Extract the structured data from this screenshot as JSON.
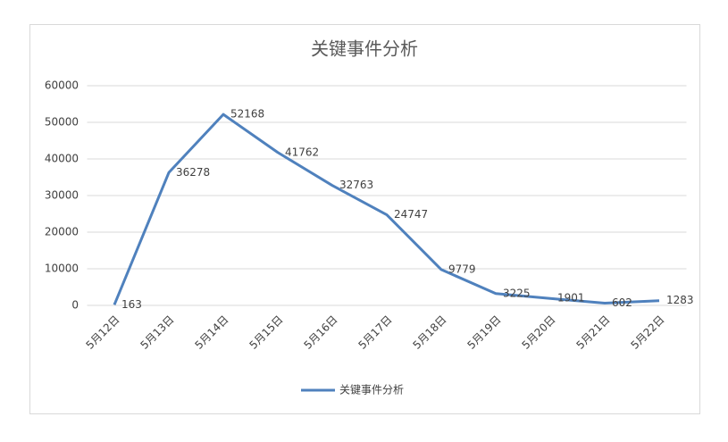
{
  "chart_data": {
    "type": "line",
    "title": "关键事件分析",
    "categories": [
      "5月12日",
      "5月13日",
      "5月14日",
      "5月15日",
      "5月16日",
      "5月17日",
      "5月18日",
      "5月19日",
      "5月20日",
      "5月21日",
      "5月22日"
    ],
    "series": [
      {
        "name": "关键事件分析",
        "color": "#4f81bd",
        "values": [
          163,
          36278,
          52168,
          41762,
          32763,
          24747,
          9779,
          3225,
          1901,
          602,
          1283
        ]
      }
    ],
    "ylim": [
      0,
      60000
    ],
    "yticks": [
      0,
      10000,
      20000,
      30000,
      40000,
      50000,
      60000
    ],
    "grid": true,
    "legend": "bottom"
  }
}
